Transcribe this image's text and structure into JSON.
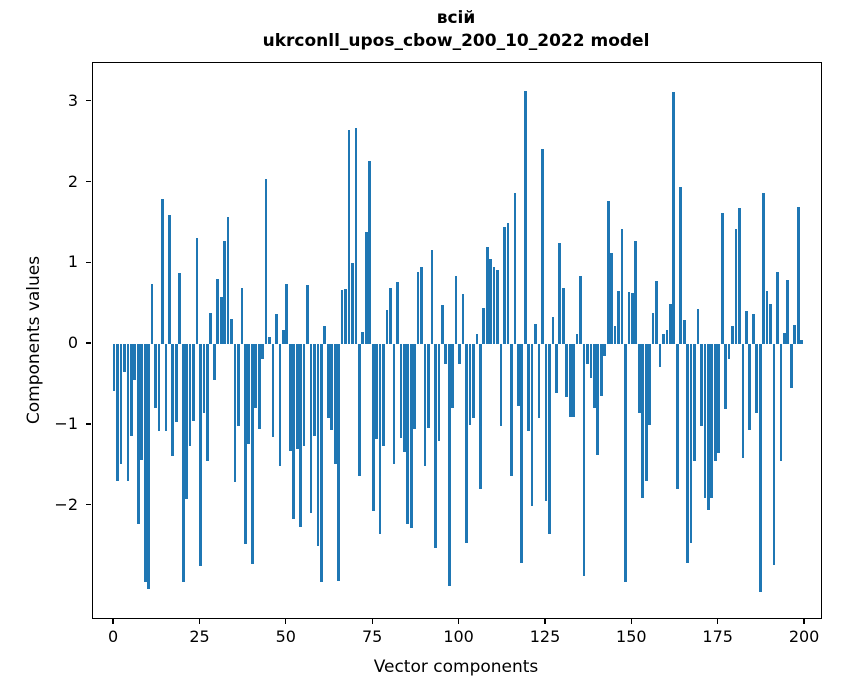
{
  "chart_data": {
    "type": "bar",
    "title": "всій",
    "subtitle": "ukrconll_upos_cbow_200_10_2022 model",
    "xlabel": "Vector components",
    "ylabel": "Components values",
    "bar_color": "#1f77b4",
    "grid": false,
    "legend_position": "none",
    "x_ticks": [
      0,
      25,
      50,
      75,
      100,
      125,
      150,
      175,
      200
    ],
    "y_ticks": [
      3,
      2,
      1,
      0,
      -1,
      -2
    ],
    "xlim": [
      -6.1,
      204.6
    ],
    "ylim": [
      -3.39,
      3.48
    ],
    "x_start": 0,
    "values": [
      -0.58,
      -1.69,
      -1.49,
      -0.35,
      -1.69,
      -1.14,
      -0.44,
      -2.23,
      -1.43,
      -2.95,
      -3.03,
      0.75,
      -0.79,
      -1.08,
      1.8,
      -1.08,
      1.6,
      -1.39,
      -0.97,
      0.88,
      -2.95,
      -1.92,
      -1.26,
      -0.95,
      1.32,
      -2.75,
      -0.85,
      -1.45,
      0.38,
      -0.45,
      0.81,
      0.59,
      1.28,
      1.58,
      0.31,
      -1.71,
      -1.01,
      0.7,
      -2.47,
      -1.24,
      -2.72,
      -0.79,
      -1.05,
      -0.19,
      2.05,
      0.09,
      -1.15,
      0.37,
      -1.51,
      0.18,
      0.75,
      -1.32,
      -2.17,
      -1.3,
      -2.27,
      -1.26,
      0.73,
      -2.09,
      -1.14,
      -2.5,
      -2.95,
      0.22,
      -0.91,
      -1.06,
      -1.49,
      -2.93,
      0.67,
      0.68,
      2.65,
      1.01,
      2.68,
      -1.63,
      0.15,
      1.39,
      2.27,
      -2.07,
      -1.18,
      -2.35,
      -1.26,
      0.42,
      0.7,
      -1.49,
      0.77,
      -1.16,
      -1.34,
      -2.23,
      -2.28,
      -1.05,
      0.89,
      0.95,
      -1.51,
      -1.04,
      1.16,
      -2.52,
      -1.2,
      0.48,
      -0.25,
      -3.0,
      -0.79,
      0.85,
      -0.25,
      0.62,
      -2.46,
      -1.0,
      -0.91,
      0.12,
      -1.8,
      0.45,
      1.2,
      1.05,
      0.95,
      0.92,
      -1.01,
      1.45,
      1.5,
      -1.63,
      1.87,
      -0.77,
      -2.71,
      3.13,
      -1.08,
      -2.0,
      0.25,
      -0.91,
      2.42,
      -1.94,
      -2.35,
      0.34,
      -0.6,
      1.25,
      0.7,
      -0.65,
      -0.9,
      -0.9,
      0.12,
      0.84,
      -2.87,
      -0.25,
      -0.42,
      -0.79,
      -1.37,
      -0.64,
      -0.15,
      1.77,
      1.13,
      0.22,
      0.66,
      1.43,
      -2.95,
      0.64,
      0.63,
      1.28,
      -0.85,
      -1.9,
      -1.7,
      -1.0,
      0.38,
      0.78,
      -0.28,
      0.13,
      0.18,
      0.5,
      3.12,
      -1.8,
      1.95,
      0.3,
      -2.71,
      -2.46,
      -1.45,
      0.43,
      -1.01,
      -1.9,
      -2.05,
      -1.9,
      -1.45,
      -1.35,
      1.62,
      -0.81,
      -0.19,
      0.22,
      1.43,
      1.68,
      -1.41,
      0.41,
      -1.06,
      0.37,
      -0.85,
      -3.07,
      1.87,
      0.66,
      0.5,
      -2.73,
      0.89,
      -1.45,
      0.14,
      0.79,
      -0.55,
      0.24,
      1.7,
      0.05
    ]
  }
}
